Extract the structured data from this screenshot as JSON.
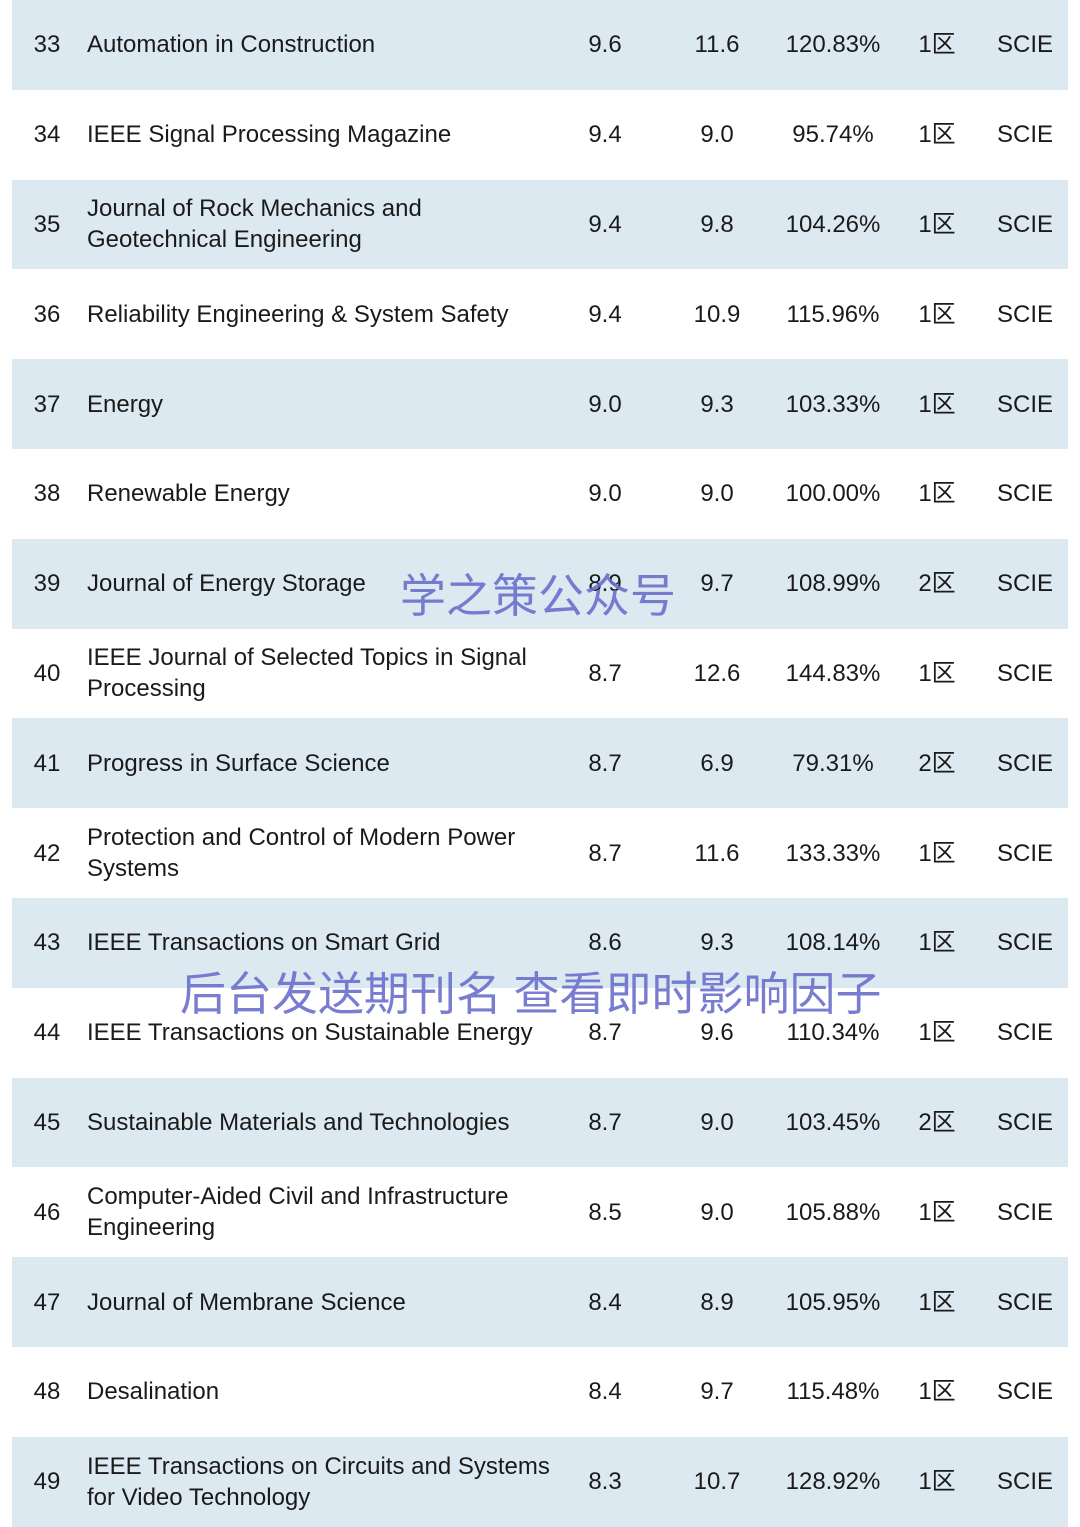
{
  "table": {
    "rows": [
      [
        "33",
        "Automation in Construction",
        "9.6",
        "11.6",
        "120.83%",
        "1区",
        "SCIE"
      ],
      [
        "34",
        "IEEE Signal Processing Magazine",
        "9.4",
        "9.0",
        "95.74%",
        "1区",
        "SCIE"
      ],
      [
        "35",
        "Journal of Rock Mechanics and Geotechnical Engineering",
        "9.4",
        "9.8",
        "104.26%",
        "1区",
        "SCIE"
      ],
      [
        "36",
        "Reliability Engineering & System Safety",
        "9.4",
        "10.9",
        "115.96%",
        "1区",
        "SCIE"
      ],
      [
        "37",
        "Energy",
        "9.0",
        "9.3",
        "103.33%",
        "1区",
        "SCIE"
      ],
      [
        "38",
        "Renewable Energy",
        "9.0",
        "9.0",
        "100.00%",
        "1区",
        "SCIE"
      ],
      [
        "39",
        "Journal of Energy Storage",
        "8.9",
        "9.7",
        "108.99%",
        "2区",
        "SCIE"
      ],
      [
        "40",
        "IEEE Journal of Selected Topics in Signal Processing",
        "8.7",
        "12.6",
        "144.83%",
        "1区",
        "SCIE"
      ],
      [
        "41",
        "Progress in Surface Science",
        "8.7",
        "6.9",
        "79.31%",
        "2区",
        "SCIE"
      ],
      [
        "42",
        "Protection and Control of Modern Power Systems",
        "8.7",
        "11.6",
        "133.33%",
        "1区",
        "SCIE"
      ],
      [
        "43",
        "IEEE Transactions on Smart Grid",
        "8.6",
        "9.3",
        "108.14%",
        "1区",
        "SCIE"
      ],
      [
        "44",
        "IEEE Transactions on Sustainable Energy",
        "8.7",
        "9.6",
        "110.34%",
        "1区",
        "SCIE"
      ],
      [
        "45",
        "Sustainable Materials and Technologies",
        "8.7",
        "9.0",
        "103.45%",
        "2区",
        "SCIE"
      ],
      [
        "46",
        "Computer-Aided Civil and Infrastructure Engineering",
        "8.5",
        "9.0",
        "105.88%",
        "1区",
        "SCIE"
      ],
      [
        "47",
        "Journal of Membrane Science",
        "8.4",
        "8.9",
        "105.95%",
        "1区",
        "SCIE"
      ],
      [
        "48",
        "Desalination",
        "8.4",
        "9.7",
        "115.48%",
        "1区",
        "SCIE"
      ],
      [
        "49",
        "IEEE Transactions on Circuits and Systems for Video Technology",
        "8.3",
        "10.7",
        "128.92%",
        "1区",
        "SCIE"
      ]
    ]
  },
  "watermarks": [
    "学之策公众号",
    "后台发送期刊名 查看即时影响因子"
  ]
}
